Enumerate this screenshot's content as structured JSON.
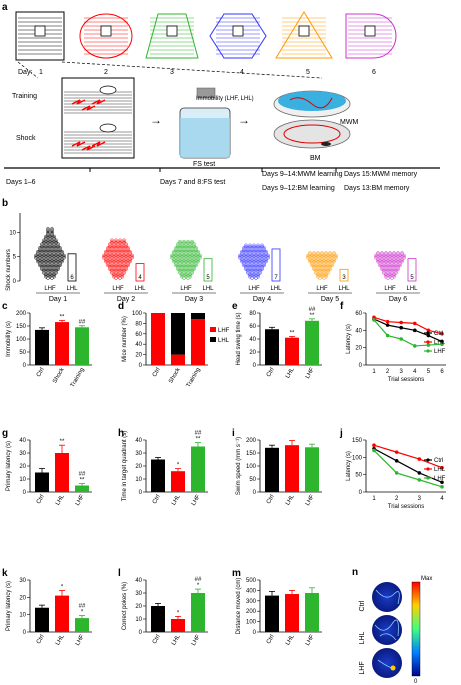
{
  "colors": {
    "black": "#000000",
    "red": "#ff0000",
    "green": "#2db52d",
    "blue": "#3333ff",
    "orange": "#ff9900",
    "purple": "#cc33cc"
  },
  "panel_a": {
    "label": "a",
    "day_prefix": "Day:",
    "days": [
      "1",
      "2",
      "3",
      "4",
      "5",
      "6"
    ],
    "training": "Training",
    "shock": "Shock",
    "immobility": "Immobility (LHF, LHL)",
    "mwm": "MWM",
    "fs_test": "FS test",
    "bm": "BM",
    "timeline": [
      "Days 1–6",
      "Days 7 and 8:FS test",
      "Days 9–14:MWM learning",
      "Days 9–12:BM learning",
      "Days 15:MWM memory",
      "Days 13:BM memory"
    ]
  },
  "panel_b": {
    "label": "b",
    "ylabel": "Shock numbers",
    "yticks": [
      "0",
      "5",
      "10"
    ],
    "groups": [
      "LHF",
      "LHL"
    ],
    "days": [
      "Day 1",
      "Day 2",
      "Day 3",
      "Day 4",
      "Day 5",
      "Day 6"
    ],
    "lhl_counts": [
      "6",
      "4",
      "5",
      "7",
      "3",
      "5"
    ]
  },
  "panel_c": {
    "label": "c",
    "ylabel": "Immobility (s)",
    "yticks": [
      "0",
      "50",
      "100",
      "150",
      "200"
    ],
    "cats": [
      "Ctrl",
      "Shock",
      "Training"
    ],
    "sig": [
      "",
      "**",
      "##"
    ]
  },
  "panel_d": {
    "label": "d",
    "ylabel": "Mice number (%)",
    "yticks": [
      "0",
      "20",
      "40",
      "60",
      "80",
      "100"
    ],
    "cats": [
      "Ctrl",
      "Shock",
      "Training"
    ],
    "legend": [
      "LHF",
      "LHL"
    ]
  },
  "panel_e": {
    "label": "e",
    "ylabel": "Head swing time (s)",
    "yticks": [
      "0",
      "20",
      "40",
      "60",
      "80"
    ],
    "cats": [
      "Ctrl",
      "LHL",
      "LHF"
    ],
    "sig": [
      "",
      "**",
      "**"
    ],
    "sig2": "##"
  },
  "panel_f": {
    "label": "f",
    "ylabel": "Latency (s)",
    "xlabel": "Trial sessions",
    "yticks": [
      "0",
      "20",
      "40",
      "60"
    ],
    "xticks": [
      "1",
      "2",
      "3",
      "4",
      "5",
      "6"
    ],
    "legend": [
      "Ctrl",
      "LHL",
      "LHF"
    ]
  },
  "panel_g": {
    "label": "g",
    "ylabel": "Primary latency (s)",
    "yticks": [
      "0",
      "10",
      "20",
      "30",
      "40"
    ],
    "cats": [
      "Ctrl",
      "LHL",
      "LHF"
    ],
    "sig": [
      "",
      "**",
      "**"
    ],
    "sig2": "##"
  },
  "panel_h": {
    "label": "h",
    "ylabel": "Time in target quadrant (s)",
    "yticks": [
      "0",
      "10",
      "20",
      "30",
      "40"
    ],
    "cats": [
      "Ctrl",
      "LHL",
      "LHF"
    ],
    "sig": [
      "",
      "*",
      "**"
    ],
    "sig2": "##"
  },
  "panel_i": {
    "label": "i",
    "ylabel": "Swim speed (mm s⁻¹)",
    "yticks": [
      "0",
      "50",
      "100",
      "150",
      "200"
    ],
    "cats": [
      "Ctrl",
      "LHL",
      "LHF"
    ]
  },
  "panel_j": {
    "label": "j",
    "ylabel": "Latency (s)",
    "xlabel": "Trial sessions",
    "yticks": [
      "0",
      "50",
      "100",
      "150"
    ],
    "xticks": [
      "1",
      "2",
      "3",
      "4"
    ],
    "legend": [
      "Ctrl",
      "LHL",
      "LHF"
    ]
  },
  "panel_k": {
    "label": "k",
    "ylabel": "Primary latency (s)",
    "yticks": [
      "0",
      "10",
      "20",
      "30"
    ],
    "cats": [
      "Ctrl",
      "LHL",
      "LHF"
    ],
    "sig": [
      "",
      "*",
      "*"
    ],
    "sig2": "##"
  },
  "panel_l": {
    "label": "l",
    "ylabel": "Correct pokes (%)",
    "yticks": [
      "0",
      "10",
      "20",
      "30",
      "40"
    ],
    "cats": [
      "Ctrl",
      "LHL",
      "LHF"
    ],
    "sig": [
      "",
      "*",
      "*"
    ],
    "sig2": "##"
  },
  "panel_m": {
    "label": "m",
    "ylabel": "Distance moved (cm)",
    "yticks": [
      "0",
      "100",
      "200",
      "300",
      "400",
      "500"
    ],
    "cats": [
      "Ctrl",
      "LHL",
      "LHF"
    ]
  },
  "panel_n": {
    "label": "n",
    "rows": [
      "Ctrl",
      "LHL",
      "LHF"
    ],
    "max": "Max",
    "min": "0"
  },
  "chart_data": [
    {
      "type": "bar",
      "panel": "c",
      "categories": [
        "Ctrl",
        "Shock",
        "Training"
      ],
      "values": [
        135,
        165,
        145
      ],
      "errors": [
        8,
        6,
        6
      ],
      "ylabel": "Immobility (s)",
      "ylim": [
        0,
        200
      ]
    },
    {
      "type": "bar",
      "panel": "d",
      "categories": [
        "Ctrl",
        "Shock",
        "Training"
      ],
      "series": [
        {
          "name": "LHF",
          "values": [
            100,
            20,
            88
          ]
        },
        {
          "name": "LHL",
          "values": [
            0,
            80,
            12
          ]
        }
      ],
      "ylabel": "Mice number (%)",
      "ylim": [
        0,
        100
      ],
      "stacked": true
    },
    {
      "type": "bar",
      "panel": "e",
      "categories": [
        "Ctrl",
        "LHL",
        "LHF"
      ],
      "values": [
        55,
        42,
        68
      ],
      "errors": [
        3,
        2,
        3
      ],
      "ylabel": "Head swing time (s)",
      "ylim": [
        0,
        80
      ]
    },
    {
      "type": "line",
      "panel": "f",
      "x": [
        1,
        2,
        3,
        4,
        5,
        6
      ],
      "series": [
        {
          "name": "Ctrl",
          "values": [
            53,
            46,
            43,
            40,
            34,
            27
          ]
        },
        {
          "name": "LHL",
          "values": [
            55,
            50,
            49,
            48,
            40,
            36
          ]
        },
        {
          "name": "LHF",
          "values": [
            52,
            34,
            30,
            22,
            23,
            24
          ]
        }
      ],
      "xlabel": "Trial sessions",
      "ylabel": "Latency (s)",
      "ylim": [
        0,
        60
      ]
    },
    {
      "type": "bar",
      "panel": "g",
      "categories": [
        "Ctrl",
        "LHL",
        "LHF"
      ],
      "values": [
        15,
        30,
        5
      ],
      "errors": [
        3,
        6,
        1.5
      ],
      "ylabel": "Primary latency (s)",
      "ylim": [
        0,
        40
      ]
    },
    {
      "type": "bar",
      "panel": "h",
      "categories": [
        "Ctrl",
        "LHL",
        "LHF"
      ],
      "values": [
        25,
        16,
        35
      ],
      "errors": [
        1.5,
        2,
        3
      ],
      "ylabel": "Time in target quadrant (s)",
      "ylim": [
        0,
        40
      ]
    },
    {
      "type": "bar",
      "panel": "i",
      "categories": [
        "Ctrl",
        "LHL",
        "LHF"
      ],
      "values": [
        170,
        180,
        172
      ],
      "errors": [
        10,
        18,
        12
      ],
      "ylabel": "Swim speed (mm s⁻¹)",
      "ylim": [
        0,
        200
      ]
    },
    {
      "type": "line",
      "panel": "j",
      "x": [
        1,
        2,
        3,
        4
      ],
      "series": [
        {
          "name": "Ctrl",
          "values": [
            125,
            90,
            55,
            28
          ]
        },
        {
          "name": "LHL",
          "values": [
            135,
            115,
            95,
            70
          ]
        },
        {
          "name": "LHF",
          "values": [
            120,
            55,
            35,
            15
          ]
        }
      ],
      "xlabel": "Trial sessions",
      "ylabel": "Latency (s)",
      "ylim": [
        0,
        150
      ]
    },
    {
      "type": "bar",
      "panel": "k",
      "categories": [
        "Ctrl",
        "LHL",
        "LHF"
      ],
      "values": [
        14,
        21,
        8
      ],
      "errors": [
        1.5,
        3,
        1.5
      ],
      "ylabel": "Primary latency (s)",
      "ylim": [
        0,
        30
      ]
    },
    {
      "type": "bar",
      "panel": "l",
      "categories": [
        "Ctrl",
        "LHL",
        "LHF"
      ],
      "values": [
        20,
        10,
        30
      ],
      "errors": [
        2,
        2,
        3
      ],
      "ylabel": "Correct pokes (%)",
      "ylim": [
        0,
        40
      ]
    },
    {
      "type": "bar",
      "panel": "m",
      "categories": [
        "Ctrl",
        "LHL",
        "LHF"
      ],
      "values": [
        350,
        365,
        375
      ],
      "errors": [
        40,
        35,
        50
      ],
      "ylabel": "Distance moved (cm)",
      "ylim": [
        0,
        500
      ]
    }
  ]
}
